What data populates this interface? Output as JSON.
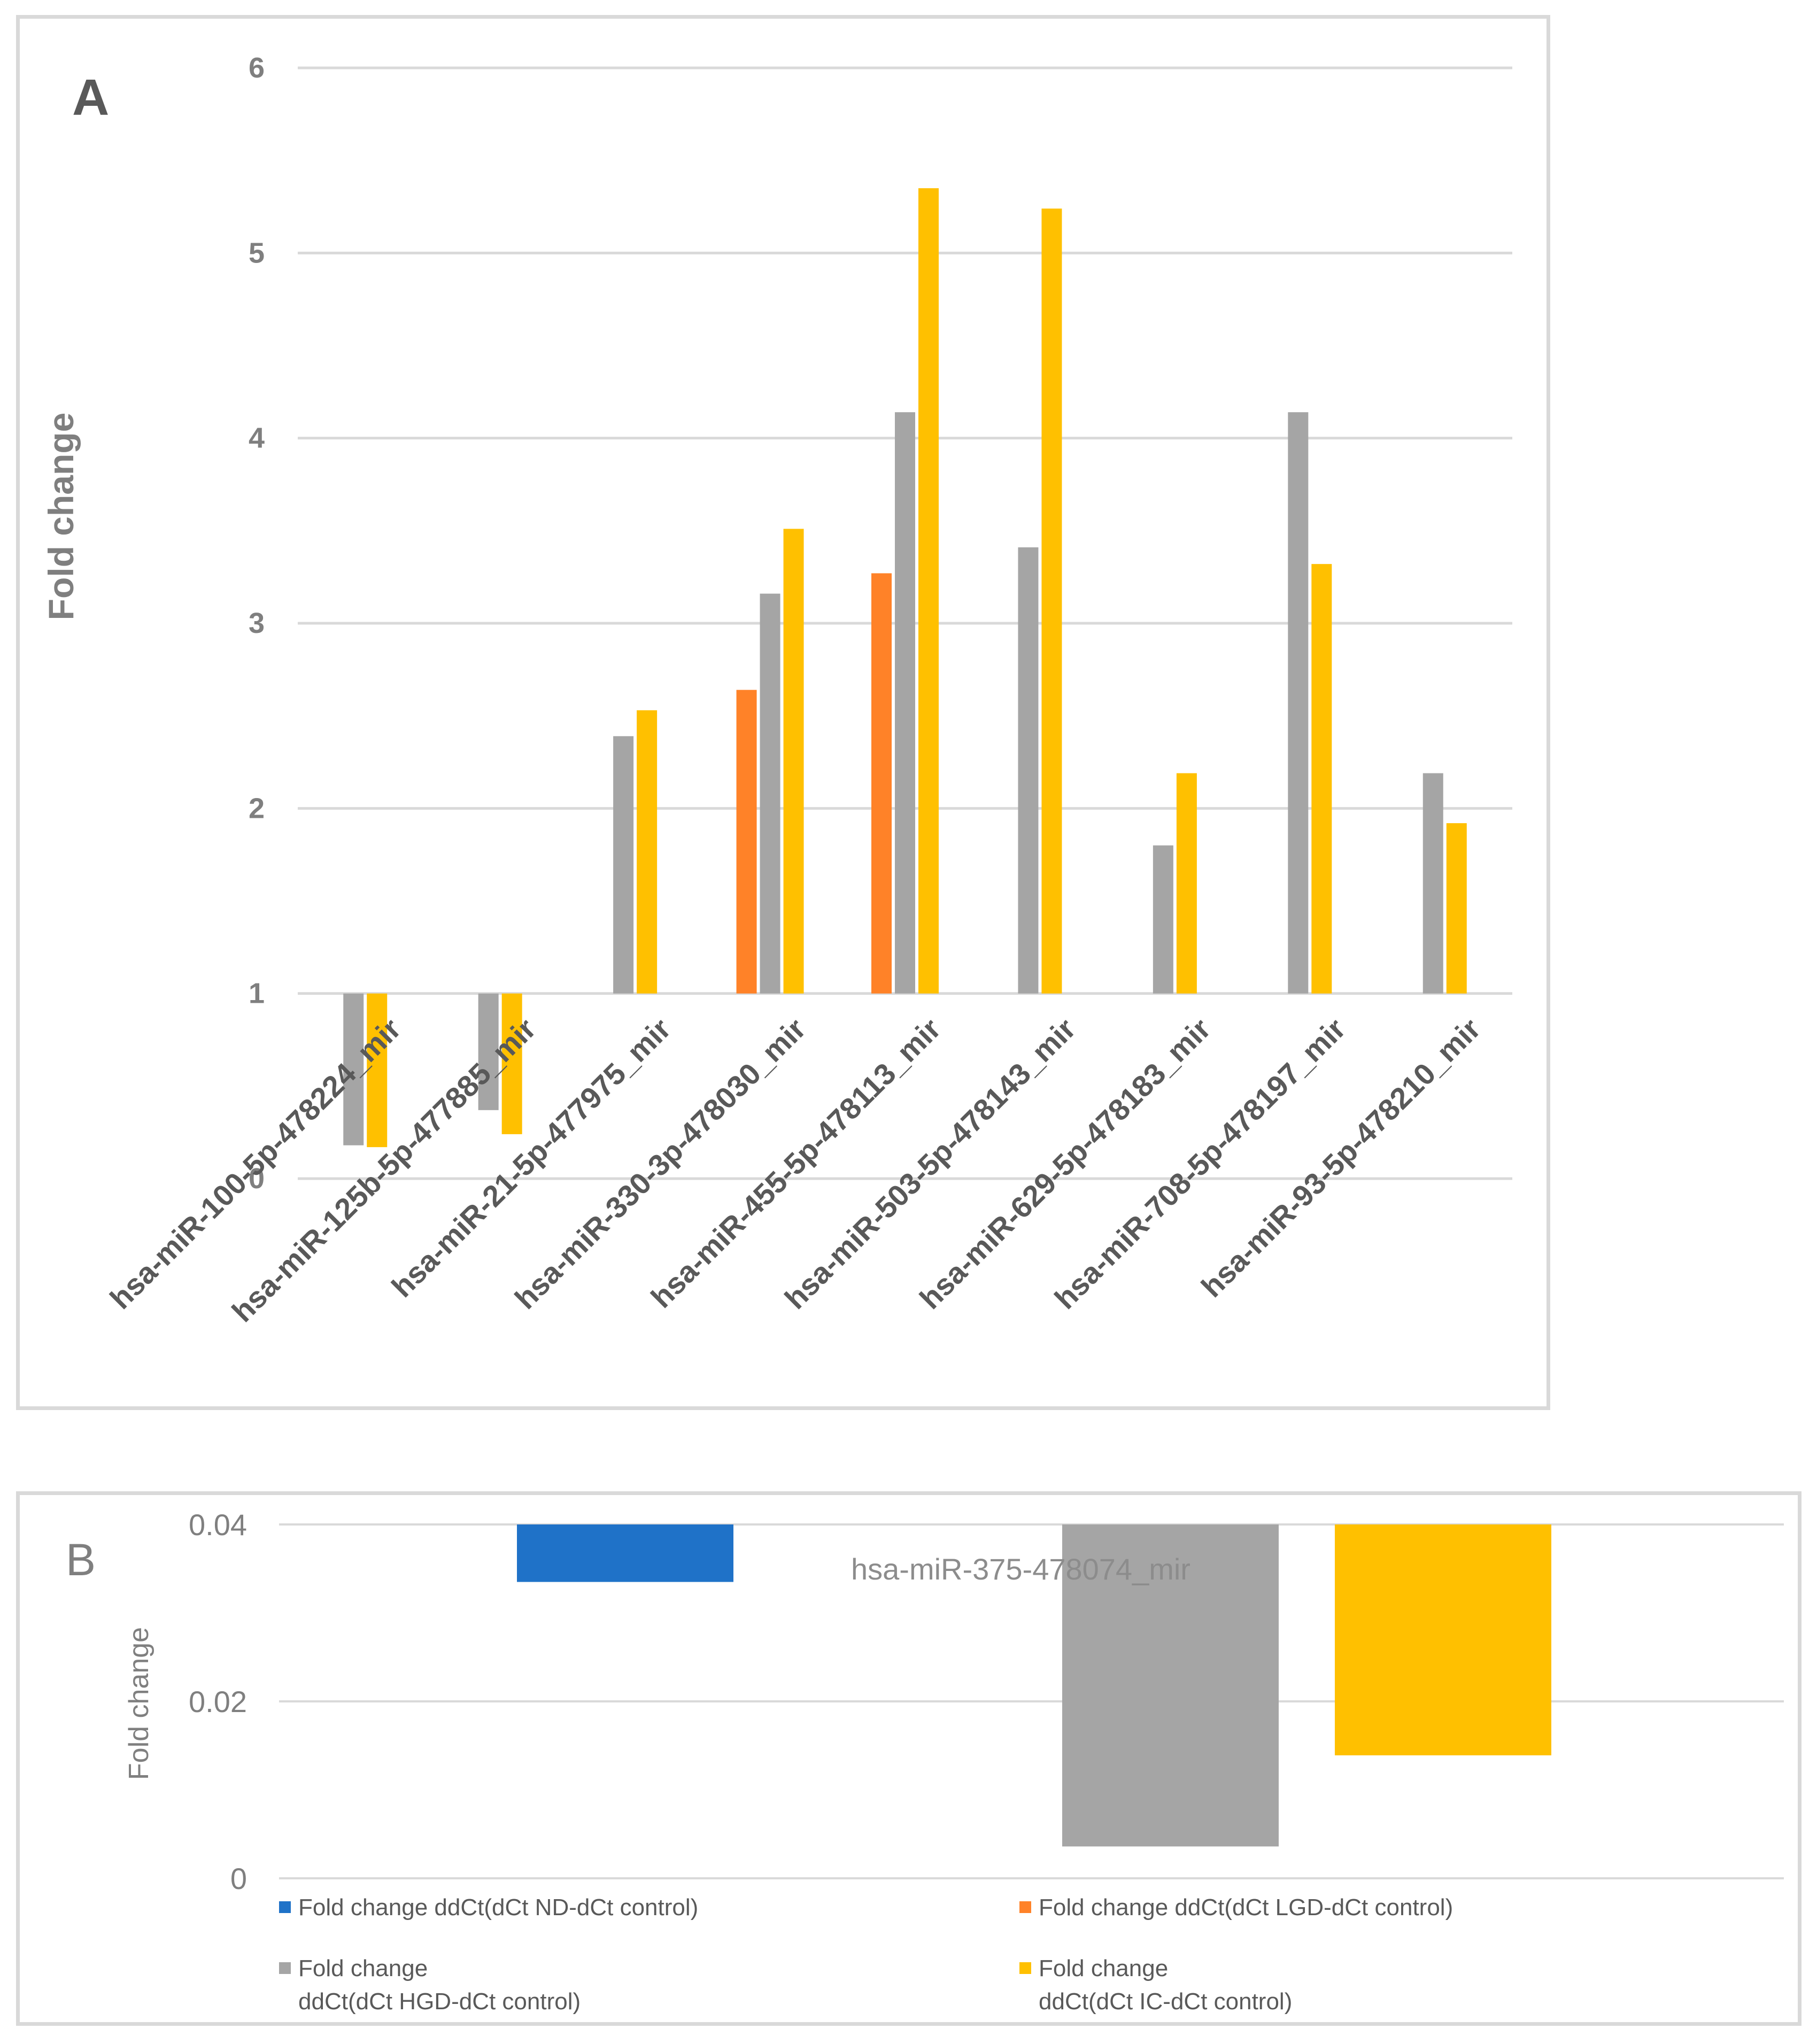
{
  "colors": {
    "nd": "#1f72c8",
    "lgd": "#ff8228",
    "hgd": "#a5a5a5",
    "ic": "#ffc000",
    "grid": "#d9d9d9"
  },
  "chart_data": [
    {
      "panel": "A",
      "type": "bar",
      "ylabel": "Fold change",
      "ylim": [
        0,
        6
      ],
      "baseline": 1,
      "yticks": [
        "0",
        "1",
        "2",
        "3",
        "4",
        "5",
        "6"
      ],
      "categories": [
        "hsa-miR-100-5p-478224_mir",
        "hsa-miR-125b-5p-477885_mir",
        "hsa-miR-21-5p-477975_mir",
        "hsa-miR-330-3p-478030_mir",
        "hsa-miR-455-5p-478113_mir",
        "hsa-miR-503-5p-478143_mir",
        "hsa-miR-629-5p-478183_mir",
        "hsa-miR-708-5p-478197_mir",
        "hsa-miR-93-5p-478210_mir"
      ],
      "series": [
        {
          "name": "Fold change  ddCt(dCt ND-dCt control)",
          "key": "nd",
          "values": [
            null,
            null,
            null,
            null,
            null,
            null,
            null,
            null,
            null
          ]
        },
        {
          "name": "Fold change ddCt(dCt LGD-dCt control)",
          "key": "lgd",
          "values": [
            null,
            null,
            null,
            2.64,
            3.27,
            null,
            null,
            null,
            null
          ]
        },
        {
          "name": "Fold change ddCt(dCt HGD-dCt control)",
          "key": "hgd",
          "values": [
            0.18,
            0.37,
            2.39,
            3.16,
            4.14,
            3.41,
            1.8,
            4.14,
            2.19
          ]
        },
        {
          "name": "Fold change ddCt(dCt IC-dCt control)",
          "key": "ic",
          "values": [
            0.17,
            0.24,
            2.53,
            3.51,
            5.35,
            5.24,
            2.19,
            3.32,
            1.92
          ]
        }
      ]
    },
    {
      "panel": "B",
      "type": "bar",
      "ylabel": "Fold change",
      "ylim": [
        0,
        0.04
      ],
      "baseline": 0.04,
      "yticks": [
        "0",
        "0.02",
        "0.04"
      ],
      "categories": [
        "hsa-miR-375-478074_mir"
      ],
      "series": [
        {
          "name": "Fold change  ddCt(dCt ND-dCt control)",
          "key": "nd",
          "values": [
            0.0335
          ]
        },
        {
          "name": "Fold change ddCt(dCt LGD-dCt control)",
          "key": "lgd",
          "values": [
            null
          ]
        },
        {
          "name": "Fold change ddCt(dCt HGD-dCt control)",
          "key": "hgd",
          "values": [
            0.0036
          ]
        },
        {
          "name": "Fold change ddCt(dCt IC-dCt control)",
          "key": "ic",
          "values": [
            0.0139
          ]
        }
      ]
    }
  ],
  "panels": {
    "a_letter": "A",
    "b_letter": "B"
  },
  "legend": [
    {
      "key": "nd",
      "line1": "Fold change  ddCt(dCt ND-dCt control)",
      "line2": ""
    },
    {
      "key": "lgd",
      "line1": "Fold change ddCt(dCt LGD-dCt control)",
      "line2": ""
    },
    {
      "key": "hgd",
      "line1": "Fold change",
      "line2": "ddCt(dCt HGD-dCt control)"
    },
    {
      "key": "ic",
      "line1": "Fold change",
      "line2": "ddCt(dCt IC-dCt control)"
    }
  ]
}
